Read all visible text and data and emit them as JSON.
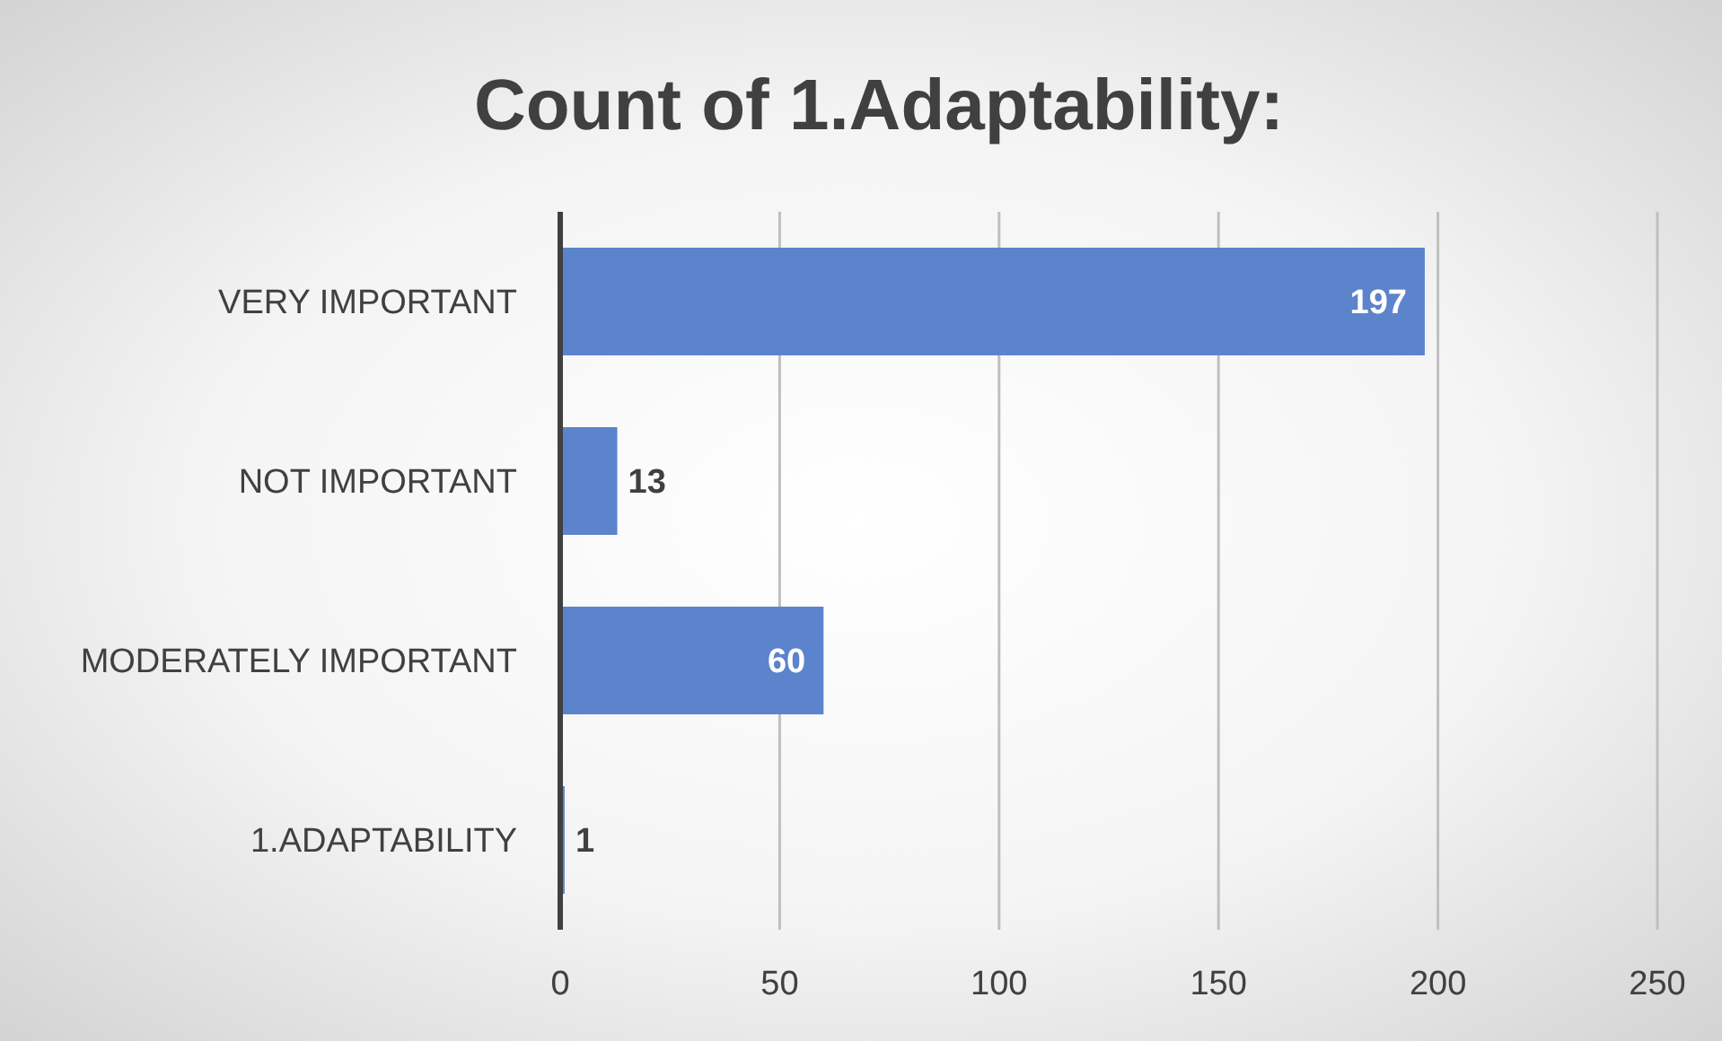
{
  "chart_data": {
    "type": "bar",
    "orientation": "horizontal",
    "title": "Count of 1.Adaptability:",
    "categories": [
      "VERY IMPORTANT",
      "NOT IMPORTANT",
      "MODERATELY IMPORTANT",
      "1.ADAPTABILITY"
    ],
    "values": [
      197,
      13,
      60,
      1
    ],
    "color": "#5b84cc",
    "xlim": [
      0,
      250
    ],
    "xticks": [
      0,
      50,
      100,
      150,
      200,
      250
    ],
    "grid": "x",
    "data_labels": true
  }
}
